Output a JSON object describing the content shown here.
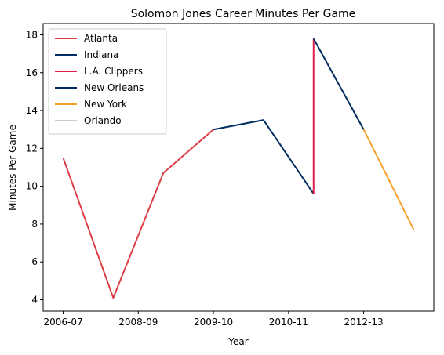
{
  "chart_data": {
    "type": "line",
    "title": "Solomon Jones  Career Minutes Per Game",
    "xlabel": "Year",
    "ylabel": "Minutes Per Game",
    "x_ticks": [
      "2006-07",
      "2008-09",
      "2009-10",
      "2010-11",
      "2012-13"
    ],
    "x_tick_positions": [
      0,
      1.5,
      3,
      4.5,
      6
    ],
    "xlim": [
      -0.4,
      7.4
    ],
    "ylim": [
      3.4,
      18.6
    ],
    "y_ticks": [
      4,
      6,
      8,
      10,
      12,
      14,
      16,
      18
    ],
    "grid": false,
    "legend_position": "top-left",
    "series": [
      {
        "name": "Atlanta",
        "color": "#dc3e45",
        "points": [
          [
            0,
            11.5
          ],
          [
            1,
            4.1
          ],
          [
            2,
            10.7
          ],
          [
            3,
            13.0
          ]
        ]
      },
      {
        "name": "Indiana",
        "color": "#002d62",
        "points": [
          [
            3,
            13.0
          ],
          [
            4,
            13.5
          ],
          [
            5,
            9.6
          ]
        ]
      },
      {
        "name": "L.A. Clippers",
        "color": "#e0204c",
        "points": [
          [
            5,
            9.6
          ],
          [
            5,
            17.8
          ]
        ]
      },
      {
        "name": "New Orleans",
        "color": "#002b5c",
        "points": [
          [
            5,
            17.8
          ],
          [
            6,
            13.0
          ]
        ]
      },
      {
        "name": "New York",
        "color": "#f5a02c",
        "points": [
          [
            6,
            13.0
          ],
          [
            7,
            7.7
          ]
        ]
      },
      {
        "name": "Orlando",
        "color": "#c4ced4",
        "points": []
      }
    ]
  }
}
